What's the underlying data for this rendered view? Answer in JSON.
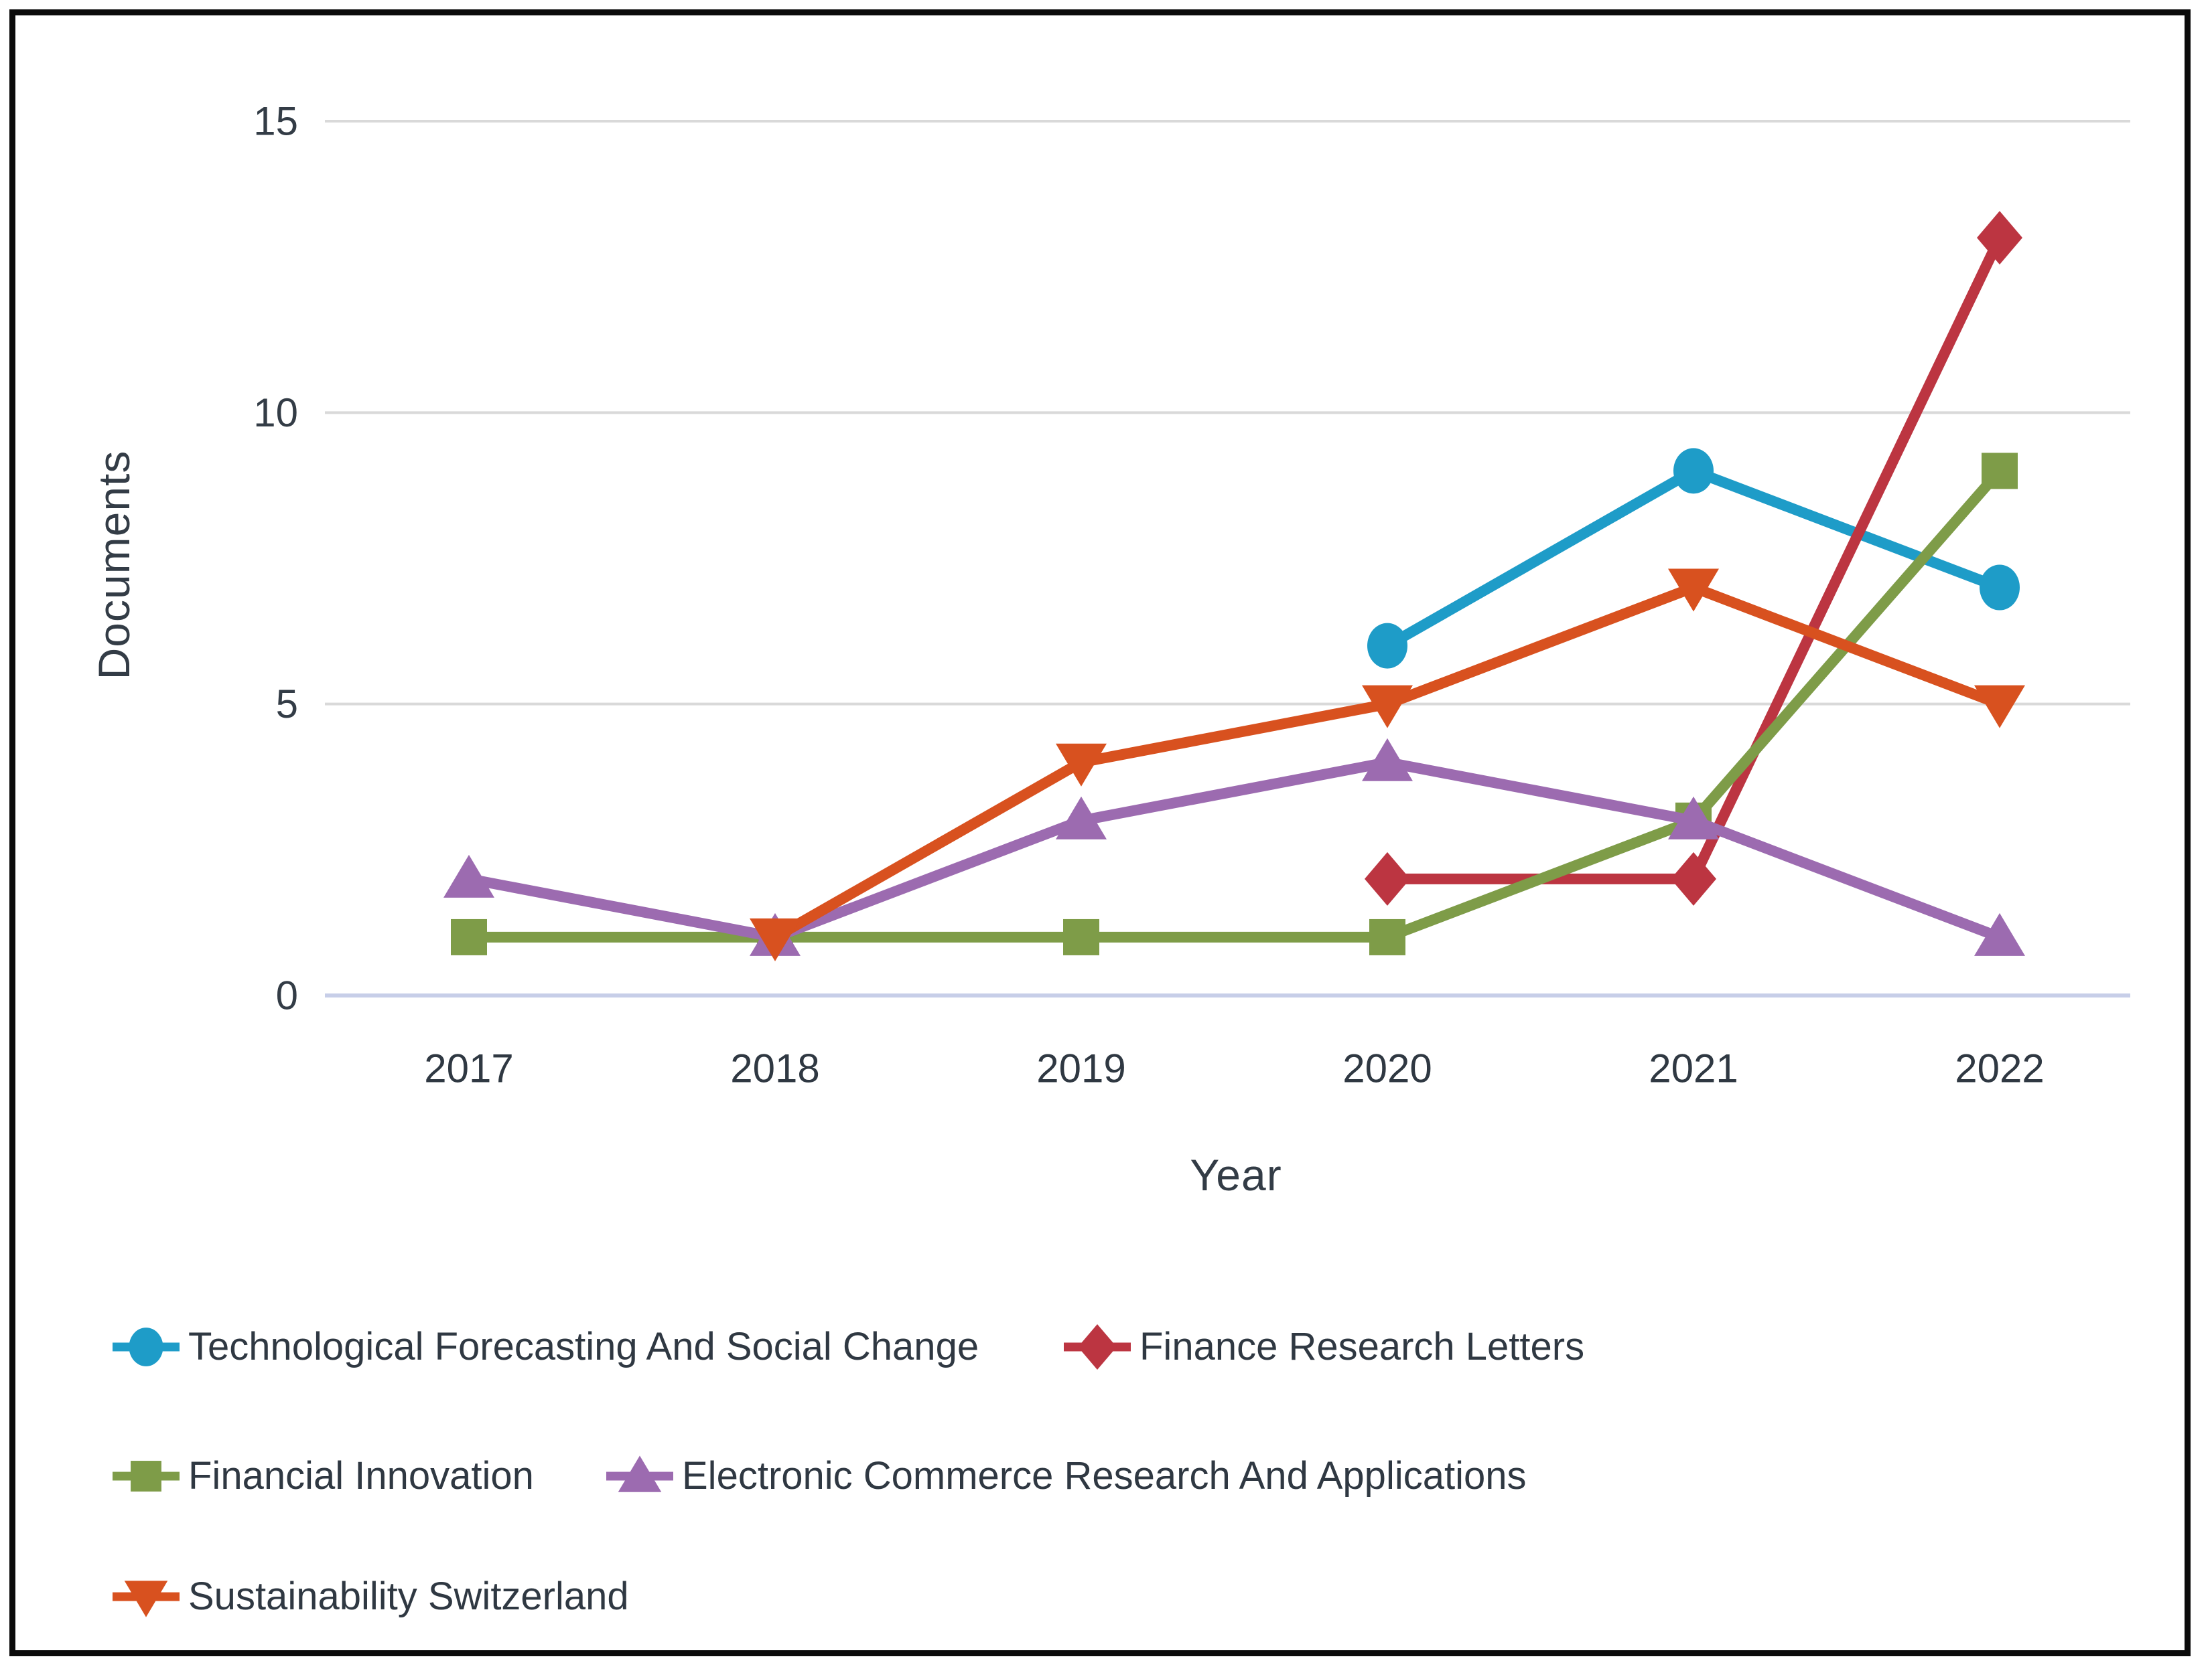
{
  "figure": {
    "frame_color": "#0b0b0b",
    "background": "#ffffff"
  },
  "chart_data": {
    "type": "line",
    "title": "",
    "xlabel": "Year",
    "ylabel": "Documents",
    "x_categories": [
      "2017",
      "2018",
      "2019",
      "2020",
      "2021",
      "2022"
    ],
    "yticks": [
      0,
      5,
      10,
      15
    ],
    "ylim": [
      0,
      15
    ],
    "grid": "horizontal",
    "grid_color": "#d9d9d9",
    "axis_line_color": "#c7cee8",
    "text_color": "#333c46",
    "legend_position": "bottom",
    "series": [
      {
        "name": "Technological Forecasting And Social Change",
        "color": "#1e9cc8",
        "marker": "circle",
        "points": [
          {
            "x": "2020",
            "y": 6
          },
          {
            "x": "2021",
            "y": 9
          },
          {
            "x": "2022",
            "y": 7
          }
        ]
      },
      {
        "name": "Finance Research Letters",
        "color": "#bc3541",
        "marker": "diamond",
        "points": [
          {
            "x": "2020",
            "y": 2
          },
          {
            "x": "2021",
            "y": 2
          },
          {
            "x": "2022",
            "y": 13
          }
        ]
      },
      {
        "name": "Financial Innovation",
        "color": "#7e9c48",
        "marker": "square",
        "points": [
          {
            "x": "2017",
            "y": 1
          },
          {
            "x": "2018",
            "y": 1
          },
          {
            "x": "2019",
            "y": 1
          },
          {
            "x": "2020",
            "y": 1
          },
          {
            "x": "2021",
            "y": 3
          },
          {
            "x": "2022",
            "y": 9
          }
        ]
      },
      {
        "name": "Electronic Commerce Research And Applications",
        "color": "#9c6bb0",
        "marker": "triangle-up",
        "points": [
          {
            "x": "2017",
            "y": 2
          },
          {
            "x": "2018",
            "y": 1
          },
          {
            "x": "2019",
            "y": 3
          },
          {
            "x": "2020",
            "y": 4
          },
          {
            "x": "2021",
            "y": 3
          },
          {
            "x": "2022",
            "y": 1
          }
        ]
      },
      {
        "name": "Sustainability Switzerland",
        "color": "#d8511f",
        "marker": "triangle-down",
        "points": [
          {
            "x": "2018",
            "y": 1
          },
          {
            "x": "2019",
            "y": 4
          },
          {
            "x": "2020",
            "y": 5
          },
          {
            "x": "2021",
            "y": 7
          },
          {
            "x": "2022",
            "y": 5
          }
        ]
      }
    ],
    "legend_rows": [
      [
        0,
        1
      ],
      [
        2,
        3
      ],
      [
        4
      ]
    ]
  }
}
